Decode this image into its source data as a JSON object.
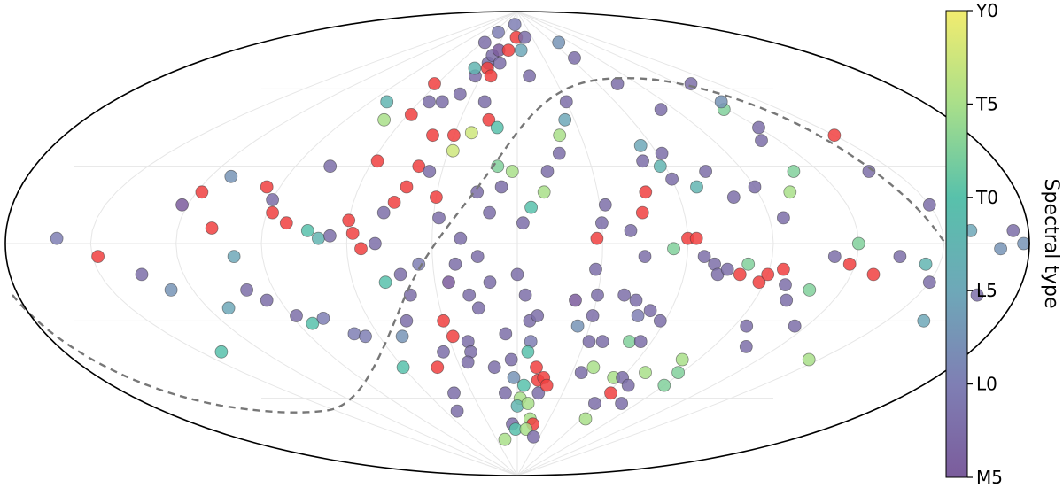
{
  "chart_data": {
    "type": "scatter",
    "projection": "aitoff/mollweide all-sky (equatorial coordinates)",
    "x_unit": "approx. right ascension offset from center (deg, -180..180)",
    "y_unit": "approx. declination (deg, -90..90)",
    "grid": true,
    "title": "",
    "colorbar": {
      "label": "Spectral type",
      "ticks": [
        "M5",
        "L0",
        "L5",
        "T0",
        "T5",
        "Y0"
      ],
      "colormap": [
        "#7b5c9c",
        "#7f7fb4",
        "#6ea8b8",
        "#58c1ab",
        "#a9df8a",
        "#f2ec6f"
      ]
    },
    "galactic_plane": {
      "style": "dashed",
      "color": "#777777"
    },
    "special_color": "#f04040",
    "points": [
      {
        "ra": -162,
        "dec": 2,
        "t": 2
      },
      {
        "ra": -148,
        "dec": -5,
        "t": "x"
      },
      {
        "ra": -140,
        "dec": -42,
        "t": 6
      },
      {
        "ra": -135,
        "dec": -12,
        "t": 1
      },
      {
        "ra": -128,
        "dec": -18,
        "t": 3
      },
      {
        "ra": -122,
        "dec": 15,
        "t": 0
      },
      {
        "ra": -118,
        "dec": 20,
        "t": "x"
      },
      {
        "ra": -112,
        "dec": 26,
        "t": 3
      },
      {
        "ra": -108,
        "dec": 6,
        "t": "x"
      },
      {
        "ra": -100,
        "dec": -5,
        "t": 4
      },
      {
        "ra": -95,
        "dec": -22,
        "t": 1
      },
      {
        "ra": -88,
        "dec": -28,
        "t": 1
      },
      {
        "ra": -84,
        "dec": -31,
        "t": 6
      },
      {
        "ra": -78,
        "dec": -29,
        "t": 2
      },
      {
        "ra": -70,
        "dec": -35,
        "t": 2
      },
      {
        "ra": -66,
        "dec": -36,
        "t": 2
      },
      {
        "ra": -60,
        "dec": -48,
        "t": 6
      },
      {
        "ra": -112,
        "dec": -25,
        "t": 4
      },
      {
        "ra": -100,
        "dec": -18,
        "t": 1
      },
      {
        "ra": -95,
        "dec": 22,
        "t": "x"
      },
      {
        "ra": -90,
        "dec": 17,
        "t": 1
      },
      {
        "ra": -88,
        "dec": 12,
        "t": "x"
      },
      {
        "ra": -82,
        "dec": 8,
        "t": "x"
      },
      {
        "ra": -74,
        "dec": 5,
        "t": 6
      },
      {
        "ra": -70,
        "dec": 2,
        "t": 5
      },
      {
        "ra": -66,
        "dec": 3,
        "t": 1
      },
      {
        "ra": -60,
        "dec": 9,
        "t": "x"
      },
      {
        "ra": -58,
        "dec": 4,
        "t": "x"
      },
      {
        "ra": -55,
        "dec": -2,
        "t": "x"
      },
      {
        "ra": -50,
        "dec": 0,
        "t": 1
      },
      {
        "ra": -48,
        "dec": 12,
        "t": 1
      },
      {
        "ra": -45,
        "dec": 16,
        "t": "x"
      },
      {
        "ra": -42,
        "dec": 22,
        "t": "x"
      },
      {
        "ra": -76,
        "dec": 30,
        "t": 1
      },
      {
        "ra": -58,
        "dec": 32,
        "t": "x"
      },
      {
        "ra": -40,
        "dec": 30,
        "t": "x"
      },
      {
        "ra": -70,
        "dec": 48,
        "t": 8
      },
      {
        "ra": -54,
        "dec": 55,
        "t": 1
      },
      {
        "ra": -58,
        "dec": 50,
        "t": "x"
      },
      {
        "ra": -46,
        "dec": 55,
        "t": 1
      },
      {
        "ra": -40,
        "dec": 42,
        "t": "x"
      },
      {
        "ra": -30,
        "dec": 42,
        "t": "x"
      },
      {
        "ra": -28,
        "dec": 36,
        "t": 9
      },
      {
        "ra": -38,
        "dec": 58,
        "t": 1
      },
      {
        "ra": -35,
        "dec": 65,
        "t": 1
      },
      {
        "ra": -30,
        "dec": 70,
        "t": 1
      },
      {
        "ra": -40,
        "dec": 68,
        "t": 5
      },
      {
        "ra": -30,
        "dec": 73,
        "t": 1
      },
      {
        "ra": -25,
        "dec": 75,
        "t": 0
      },
      {
        "ra": -28,
        "dec": 68,
        "t": "x"
      },
      {
        "ra": -22,
        "dec": 65,
        "t": "x"
      },
      {
        "ra": -18,
        "dec": 70,
        "t": 1
      },
      {
        "ra": -12,
        "dec": 75,
        "t": "x"
      },
      {
        "ra": -20,
        "dec": 55,
        "t": 1
      },
      {
        "ra": -15,
        "dec": 48,
        "t": "x"
      },
      {
        "ra": -10,
        "dec": 45,
        "t": 6
      },
      {
        "ra": -22,
        "dec": 43,
        "t": 9
      },
      {
        "ra": -35,
        "dec": 28,
        "t": 1
      },
      {
        "ra": -30,
        "dec": 18,
        "t": "x"
      },
      {
        "ra": -28,
        "dec": 10,
        "t": 1
      },
      {
        "ra": -20,
        "dec": 2,
        "t": 1
      },
      {
        "ra": -22,
        "dec": -8,
        "t": 1
      },
      {
        "ra": -25,
        "dec": -15,
        "t": 0
      },
      {
        "ra": -35,
        "dec": -8,
        "t": 2
      },
      {
        "ra": -42,
        "dec": -12,
        "t": 1
      },
      {
        "ra": -48,
        "dec": -15,
        "t": 6
      },
      {
        "ra": -40,
        "dec": -20,
        "t": 1
      },
      {
        "ra": -45,
        "dec": -30,
        "t": 1
      },
      {
        "ra": -50,
        "dec": -36,
        "t": 3
      },
      {
        "ra": -35,
        "dec": -42,
        "t": 1
      },
      {
        "ra": -42,
        "dec": -48,
        "t": "x"
      },
      {
        "ra": -30,
        "dec": -30,
        "t": "x"
      },
      {
        "ra": -28,
        "dec": -36,
        "t": "x"
      },
      {
        "ra": -22,
        "dec": -38,
        "t": 1
      },
      {
        "ra": -22,
        "dec": -42,
        "t": 1
      },
      {
        "ra": -25,
        "dec": -46,
        "t": 1
      },
      {
        "ra": -18,
        "dec": -20,
        "t": 1
      },
      {
        "ra": -12,
        "dec": -48,
        "t": 1
      },
      {
        "ra": -8,
        "dec": -58,
        "t": 1
      },
      {
        "ra": -5,
        "dec": -70,
        "t": 1
      },
      {
        "ra": -2,
        "dec": -72,
        "t": 6
      },
      {
        "ra": -18,
        "dec": -76,
        "t": 8
      },
      {
        "ra": -10,
        "dec": 12,
        "t": 1
      },
      {
        "ra": -6,
        "dec": 22,
        "t": 1
      },
      {
        "ra": -2,
        "dec": 28,
        "t": 8
      },
      {
        "ra": -8,
        "dec": 30,
        "t": 7
      },
      {
        "ra": -15,
        "dec": 20,
        "t": 1
      },
      {
        "ra": -14,
        "dec": -5,
        "t": 1
      },
      {
        "ra": -15,
        "dec": -25,
        "t": 1
      },
      {
        "ra": -10,
        "dec": -15,
        "t": 1
      },
      {
        "ra": -5,
        "dec": -35,
        "t": 1
      },
      {
        "ra": 0,
        "dec": -12,
        "t": 1
      },
      {
        "ra": 3,
        "dec": -20,
        "t": 1
      },
      {
        "ra": 5,
        "dec": -30,
        "t": 1
      },
      {
        "ra": 6,
        "dec": -38,
        "t": 2
      },
      {
        "ra": 5,
        "dec": -42,
        "t": 6
      },
      {
        "ra": 4,
        "dec": -55,
        "t": 6
      },
      {
        "ra": 2,
        "dec": -60,
        "t": 8
      },
      {
        "ra": -2,
        "dec": -52,
        "t": 3
      },
      {
        "ra": 0,
        "dec": -63,
        "t": 5
      },
      {
        "ra": -3,
        "dec": -45,
        "t": 1
      },
      {
        "ra": 8,
        "dec": -28,
        "t": 1
      },
      {
        "ra": 10,
        "dec": -48,
        "t": "x"
      },
      {
        "ra": 12,
        "dec": -53,
        "t": "x"
      },
      {
        "ra": 15,
        "dec": -52,
        "t": "x"
      },
      {
        "ra": 14,
        "dec": -58,
        "t": 1
      },
      {
        "ra": 18,
        "dec": -55,
        "t": "x"
      },
      {
        "ra": 8,
        "dec": -62,
        "t": 8
      },
      {
        "ra": 12,
        "dec": -68,
        "t": 8
      },
      {
        "ra": 16,
        "dec": -70,
        "t": "x"
      },
      {
        "ra": 10,
        "dec": -72,
        "t": 8
      },
      {
        "ra": 22,
        "dec": -75,
        "t": 1
      },
      {
        "ra": 2,
        "dec": 8,
        "t": 1
      },
      {
        "ra": 5,
        "dec": 14,
        "t": 6
      },
      {
        "ra": 10,
        "dec": 20,
        "t": 8
      },
      {
        "ra": 12,
        "dec": 28,
        "t": 1
      },
      {
        "ra": 18,
        "dec": 35,
        "t": 1
      },
      {
        "ra": 20,
        "dec": 42,
        "t": 8
      },
      {
        "ra": 25,
        "dec": 48,
        "t": 4
      },
      {
        "ra": 28,
        "dec": -10,
        "t": 1
      },
      {
        "ra": 30,
        "dec": -20,
        "t": 1
      },
      {
        "ra": 22,
        "dec": -22,
        "t": 0
      },
      {
        "ra": 25,
        "dec": -32,
        "t": 3
      },
      {
        "ra": 32,
        "dec": -38,
        "t": 1
      },
      {
        "ra": 38,
        "dec": -38,
        "t": 1
      },
      {
        "ra": 35,
        "dec": -50,
        "t": 1
      },
      {
        "ra": 40,
        "dec": -48,
        "t": 8
      },
      {
        "ra": 30,
        "dec": -28,
        "t": 1
      },
      {
        "ra": 40,
        "dec": -20,
        "t": 1
      },
      {
        "ra": 45,
        "dec": -22,
        "t": 1
      },
      {
        "ra": 48,
        "dec": -28,
        "t": 2
      },
      {
        "ra": 52,
        "dec": -26,
        "t": 1
      },
      {
        "ra": 50,
        "dec": -38,
        "t": 7
      },
      {
        "ra": 55,
        "dec": -38,
        "t": 1
      },
      {
        "ra": 58,
        "dec": -30,
        "t": 1
      },
      {
        "ra": 55,
        "dec": -52,
        "t": 8
      },
      {
        "ra": 60,
        "dec": -52,
        "t": 1
      },
      {
        "ra": 62,
        "dec": -58,
        "t": "x"
      },
      {
        "ra": 68,
        "dec": -55,
        "t": 1
      },
      {
        "ra": 70,
        "dec": -50,
        "t": 8
      },
      {
        "ra": 58,
        "dec": -62,
        "t": 1
      },
      {
        "ra": 64,
        "dec": -68,
        "t": 8
      },
      {
        "ra": 28,
        "dec": 2,
        "t": "x"
      },
      {
        "ra": 30,
        "dec": 8,
        "t": 1
      },
      {
        "ra": 32,
        "dec": 15,
        "t": 1
      },
      {
        "ra": 40,
        "dec": 5,
        "t": 1
      },
      {
        "ra": 45,
        "dec": -5,
        "t": 1
      },
      {
        "ra": 45,
        "dec": 12,
        "t": "x"
      },
      {
        "ra": 48,
        "dec": 20,
        "t": "x"
      },
      {
        "ra": 55,
        "dec": -2,
        "t": 7
      },
      {
        "ra": 60,
        "dec": 2,
        "t": "x"
      },
      {
        "ra": 63,
        "dec": 2,
        "t": "x"
      },
      {
        "ra": 66,
        "dec": -5,
        "t": 1
      },
      {
        "ra": 70,
        "dec": -8,
        "t": 1
      },
      {
        "ra": 72,
        "dec": -12,
        "t": 1
      },
      {
        "ra": 75,
        "dec": -10,
        "t": 1
      },
      {
        "ra": 80,
        "dec": -12,
        "t": "x"
      },
      {
        "ra": 82,
        "dec": -8,
        "t": 7
      },
      {
        "ra": 88,
        "dec": -15,
        "t": "x"
      },
      {
        "ra": 90,
        "dec": -12,
        "t": "x"
      },
      {
        "ra": 95,
        "dec": -10,
        "t": "x"
      },
      {
        "ra": 98,
        "dec": -16,
        "t": 1
      },
      {
        "ra": 102,
        "dec": -22,
        "t": 1
      },
      {
        "ra": 108,
        "dec": -18,
        "t": 7
      },
      {
        "ra": 112,
        "dec": -5,
        "t": 1
      },
      {
        "ra": 118,
        "dec": -8,
        "t": "x"
      },
      {
        "ra": 120,
        "dec": 0,
        "t": 7
      },
      {
        "ra": 128,
        "dec": -12,
        "t": "x"
      },
      {
        "ra": 135,
        "dec": -5,
        "t": 1
      },
      {
        "ra": 145,
        "dec": -8,
        "t": 5
      },
      {
        "ra": 150,
        "dec": -15,
        "t": 1
      },
      {
        "ra": 158,
        "dec": -10,
        "t": 4
      },
      {
        "ra": 165,
        "dec": -30,
        "t": 4
      },
      {
        "ra": 172,
        "dec": -20,
        "t": 1
      },
      {
        "ra": 170,
        "dec": -25,
        "t": 1
      },
      {
        "ra": 145,
        "dec": -45,
        "t": 8
      },
      {
        "ra": 52,
        "dec": 32,
        "t": 1
      },
      {
        "ra": 55,
        "dec": 38,
        "t": 4
      },
      {
        "ra": 58,
        "dec": 30,
        "t": 5
      },
      {
        "ra": 62,
        "dec": 35,
        "t": 1
      },
      {
        "ra": 60,
        "dec": 25,
        "t": 1
      },
      {
        "ra": 68,
        "dec": 22,
        "t": 5
      },
      {
        "ra": 75,
        "dec": 28,
        "t": 1
      },
      {
        "ra": 80,
        "dec": 18,
        "t": 1
      },
      {
        "ra": 90,
        "dec": 22,
        "t": 1
      },
      {
        "ra": 95,
        "dec": 10,
        "t": 1
      },
      {
        "ra": 102,
        "dec": 20,
        "t": 8
      },
      {
        "ra": 110,
        "dec": 28,
        "t": 7
      },
      {
        "ra": 112,
        "dec": 40,
        "t": 1
      },
      {
        "ra": 120,
        "dec": 45,
        "t": 1
      },
      {
        "ra": 118,
        "dec": 52,
        "t": 7
      },
      {
        "ra": 125,
        "dec": 55,
        "t": 3
      },
      {
        "ra": 130,
        "dec": 62,
        "t": 1
      },
      {
        "ra": 150,
        "dec": 42,
        "t": "x"
      },
      {
        "ra": 140,
        "dec": 28,
        "t": 1
      },
      {
        "ra": 150,
        "dec": 15,
        "t": 1
      },
      {
        "ra": 160,
        "dec": 5,
        "t": 4
      },
      {
        "ra": 170,
        "dec": -2,
        "t": 3
      },
      {
        "ra": 175,
        "dec": 5,
        "t": 1
      },
      {
        "ra": 178,
        "dec": 0,
        "t": 3
      },
      {
        "ra": 95,
        "dec": -32,
        "t": 1
      },
      {
        "ra": 105,
        "dec": -40,
        "t": 1
      },
      {
        "ra": 115,
        "dec": -32,
        "t": 1
      },
      {
        "ra": 82,
        "dec": -45,
        "t": 8
      },
      {
        "ra": 88,
        "dec": -50,
        "t": 7
      },
      {
        "ra": 90,
        "dec": -55,
        "t": 7
      },
      {
        "ra": 78,
        "dec": -62,
        "t": 1
      },
      {
        "ra": 82,
        "dec": 52,
        "t": 1
      },
      {
        "ra": 75,
        "dec": 62,
        "t": 1
      },
      {
        "ra": 65,
        "dec": 72,
        "t": 1
      },
      {
        "ra": 70,
        "dec": 78,
        "t": 3
      },
      {
        "ra": 30,
        "dec": 55,
        "t": 1
      },
      {
        "ra": 10,
        "dec": 65,
        "t": 1
      },
      {
        "ra": 5,
        "dec": 75,
        "t": 4
      },
      {
        "ra": -2,
        "dec": 80,
        "t": "x"
      },
      {
        "ra": -10,
        "dec": 85,
        "t": 2
      },
      {
        "ra": 15,
        "dec": 80,
        "t": 1
      },
      {
        "ra": -55,
        "dec": 78,
        "t": 1
      },
      {
        "ra": -48,
        "dec": 82,
        "t": 2
      },
      {
        "ra": -62,
        "dec": 62,
        "t": "x"
      },
      {
        "ra": -80,
        "dec": 55,
        "t": 5
      },
      {
        "ra": -42,
        "dec": -58,
        "t": 1
      },
      {
        "ra": -50,
        "dec": -65,
        "t": 1
      }
    ]
  }
}
